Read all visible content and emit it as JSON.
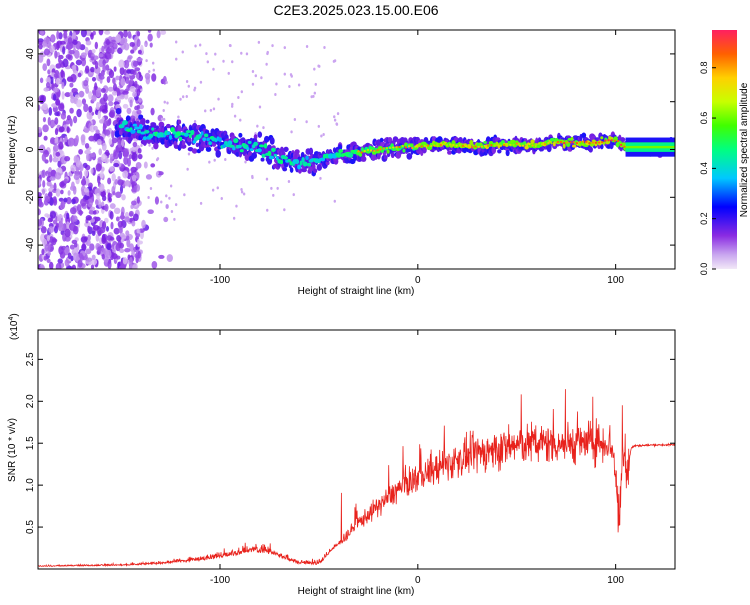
{
  "title": "C2E3.2025.023.15.00.E06",
  "chart_data": [
    {
      "type": "heatmap",
      "xlabel": "Height of straight line (km)",
      "ylabel": "Frequency (Hz)",
      "xlim": [
        -192,
        130
      ],
      "ylim": [
        -50,
        50
      ],
      "x_ticks": [
        -100,
        0,
        100
      ],
      "y_ticks": [
        -40,
        -20,
        0,
        20,
        40
      ],
      "colorbar": {
        "label": "Normalized spectral amplitude",
        "range": [
          0,
          0.95
        ],
        "ticks": [
          0.0,
          0.2,
          0.4,
          0.6,
          0.8
        ]
      },
      "ridge": {
        "x": [
          -150,
          -140,
          -130,
          -120,
          -110,
          -100,
          -90,
          -80,
          -70,
          -60,
          -50,
          -40,
          -30,
          -20,
          -10,
          0,
          10,
          20,
          30,
          40,
          50,
          60,
          70,
          80,
          90,
          100,
          105,
          130
        ],
        "y": [
          10,
          8,
          6,
          6,
          5,
          4,
          2,
          0,
          -3,
          -5,
          -4,
          -2,
          -1,
          0,
          1,
          1,
          2,
          2,
          1,
          2,
          2,
          2,
          3,
          3,
          3,
          4,
          1,
          1
        ]
      },
      "noise_region": "x < -140 broadband"
    },
    {
      "type": "line",
      "xlabel": "Height of straight line (km)",
      "ylabel": "SNR (10 * v/v)",
      "y_multiplier_label": "(x10",
      "y_multiplier_exp": "4",
      "xlim": [
        -192,
        130
      ],
      "ylim": [
        0,
        2.85
      ],
      "x_ticks": [
        -100,
        0,
        100
      ],
      "y_ticks": [
        0.5,
        1.0,
        1.5,
        2.0,
        2.5
      ],
      "series": [
        {
          "color": "#e8221c",
          "x": [
            -192,
            -150,
            -130,
            -110,
            -95,
            -85,
            -75,
            -65,
            -60,
            -50,
            -40,
            -30,
            -20,
            -10,
            0,
            10,
            20,
            30,
            40,
            50,
            60,
            70,
            80,
            90,
            98,
            100,
            102,
            104,
            106,
            108,
            110,
            120,
            130
          ],
          "y": [
            0.03,
            0.04,
            0.06,
            0.1,
            0.15,
            0.2,
            0.18,
            0.1,
            0.06,
            0.05,
            0.3,
            0.55,
            0.75,
            0.95,
            1.1,
            1.2,
            1.3,
            1.38,
            1.42,
            1.48,
            1.5,
            1.5,
            1.5,
            1.52,
            1.5,
            1.1,
            0.6,
            1.5,
            1.2,
            1.45,
            1.47,
            1.48,
            1.48
          ]
        }
      ]
    }
  ]
}
